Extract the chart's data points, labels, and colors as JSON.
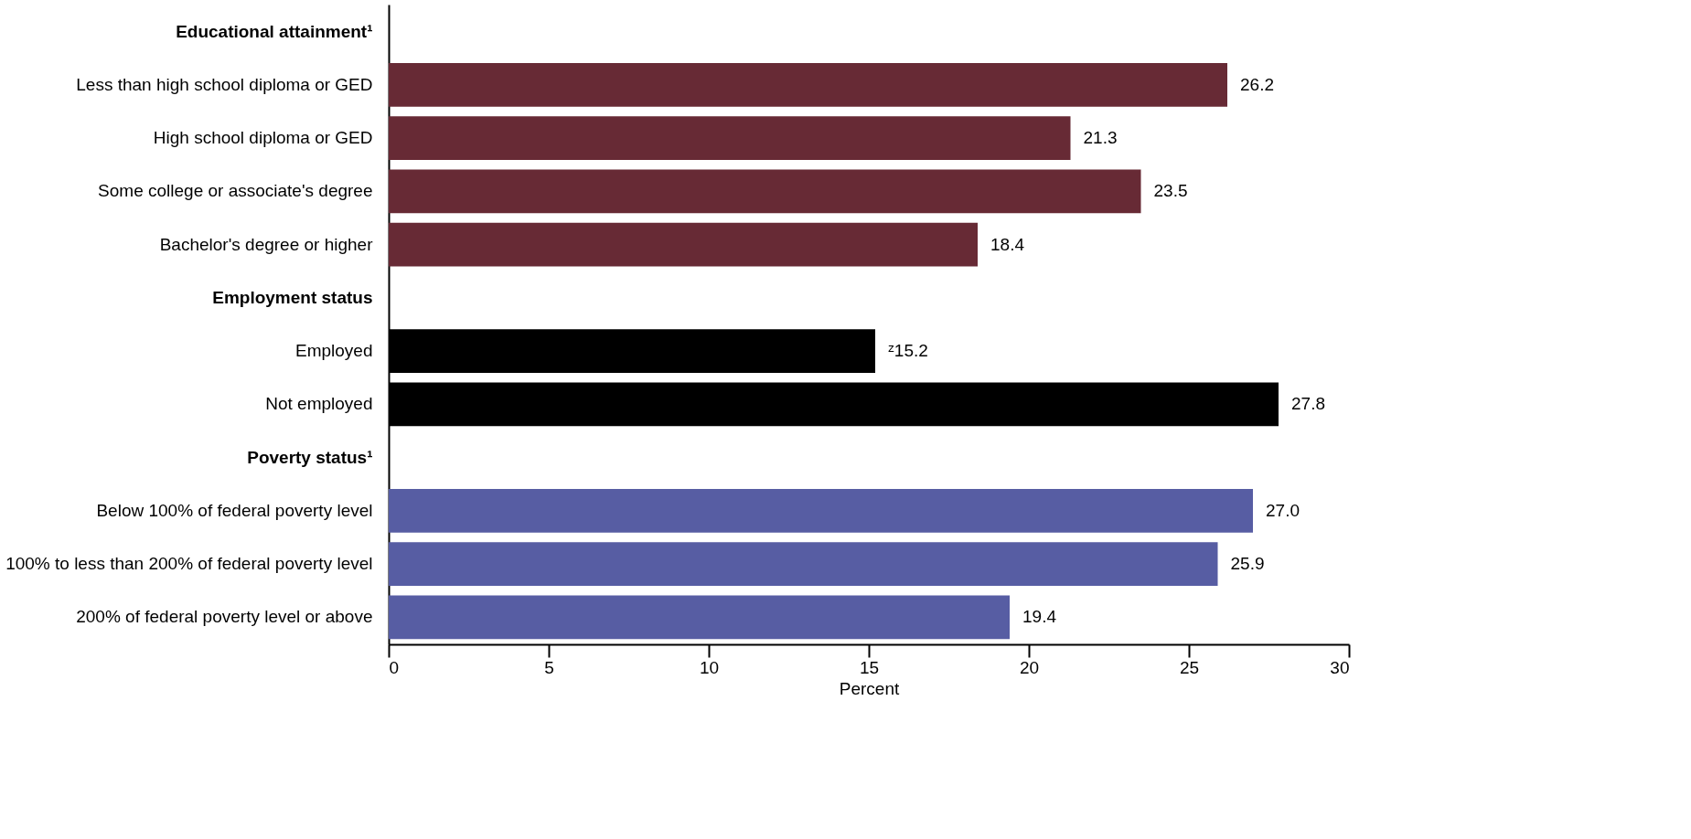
{
  "chart_data": {
    "type": "bar",
    "orientation": "horizontal",
    "categories": [
      "Educational attainment¹",
      "Less than high school diploma or GED",
      "High school diploma or GED",
      "Some college or associate's degree",
      "Bachelor's degree or higher",
      "Employment status",
      "Employed",
      "Not employed",
      "Poverty status¹",
      "Below 100% of federal poverty level",
      "100% to less than 200% of federal poverty level",
      "200% of federal poverty level or above"
    ],
    "values": [
      null,
      26.2,
      21.3,
      23.5,
      18.4,
      null,
      15.2,
      27.8,
      null,
      27.0,
      25.9,
      19.4
    ],
    "colors": [
      null,
      "#672a35",
      "#672a35",
      "#672a35",
      "#672a35",
      null,
      "#000000",
      "#000000",
      null,
      "#575da3",
      "#575da3",
      "#575da3"
    ],
    "value_labels": [
      null,
      "26.2",
      "21.3",
      "23.5",
      "18.4",
      null,
      "ᶻ15.2",
      "27.8",
      null,
      "27.0",
      "25.9",
      "19.4"
    ],
    "xlim": [
      0,
      30
    ],
    "xticks": [
      0,
      5,
      10,
      15,
      20,
      25,
      30
    ],
    "xlabel": "Percent",
    "grid": false
  }
}
